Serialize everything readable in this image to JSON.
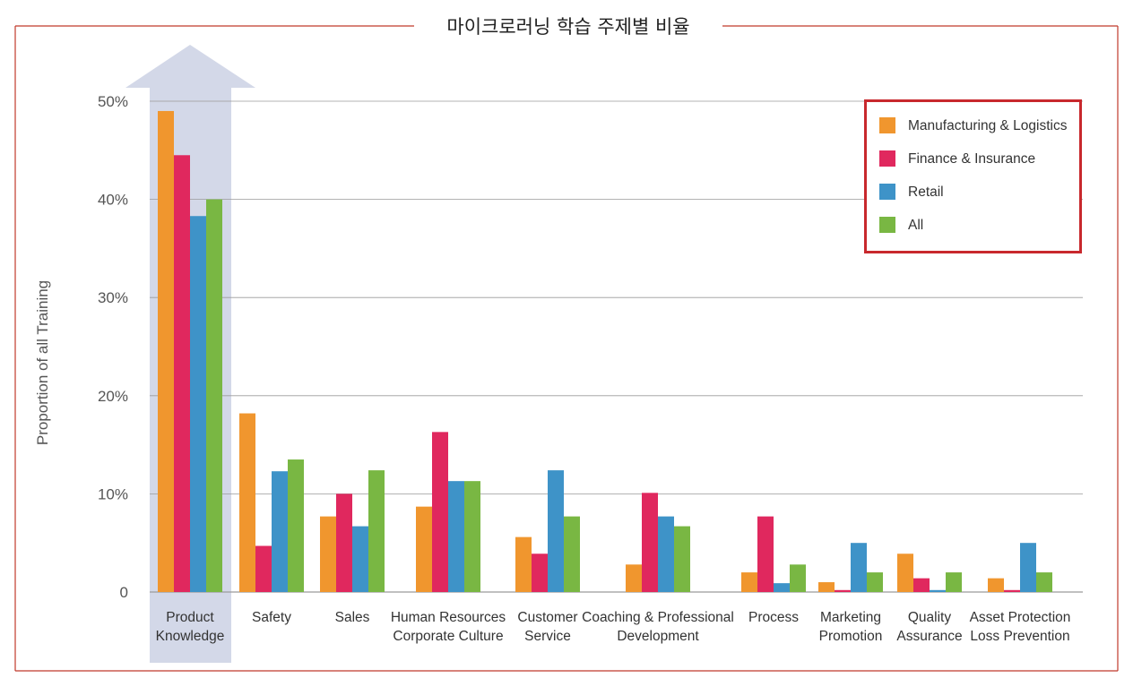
{
  "chart_data": {
    "type": "bar",
    "title": "마이크로러닝 학습 주제별 비율",
    "ylabel": "Proportion of all Training",
    "xlabel": "",
    "ylim": [
      0,
      50
    ],
    "ytick_labels": [
      "0",
      "10%",
      "20%",
      "30%",
      "40%",
      "50%"
    ],
    "ytick_values": [
      0,
      10,
      20,
      30,
      40,
      50
    ],
    "grid": true,
    "legend_position": "top-right",
    "highlighted_category": "Product Knowledge",
    "categories": [
      [
        "Product",
        "Knowledge"
      ],
      [
        "Safety"
      ],
      [
        "Sales"
      ],
      [
        "Human Resources",
        "Corporate Culture"
      ],
      [
        "Customer",
        "Service"
      ],
      [
        "Coaching & Professional",
        "Development"
      ],
      [
        "Process"
      ],
      [
        "Marketing",
        "Promotion"
      ],
      [
        "Quality",
        "Assurance"
      ],
      [
        "Asset Protection",
        "Loss Prevention"
      ]
    ],
    "series": [
      {
        "name": "Manufacturing & Logistics",
        "color": "#f0962e",
        "values": [
          49,
          18.2,
          7.7,
          8.7,
          5.6,
          2.8,
          2.0,
          1.0,
          3.9,
          1.4
        ]
      },
      {
        "name": "Finance & Insurance",
        "color": "#e0285e",
        "values": [
          44.5,
          4.7,
          10.0,
          16.3,
          3.9,
          10.1,
          7.7,
          0.2,
          1.4,
          0.2
        ]
      },
      {
        "name": "Retail",
        "color": "#3e93c8",
        "values": [
          38.3,
          12.3,
          6.7,
          11.3,
          12.4,
          7.7,
          0.9,
          5.0,
          0.2,
          5.0
        ]
      },
      {
        "name": "All",
        "color": "#79b743",
        "values": [
          40.0,
          13.5,
          12.4,
          11.3,
          7.7,
          6.7,
          2.8,
          2.0,
          2.0,
          2.0
        ]
      }
    ]
  },
  "colors": {
    "frame": "#c0392b",
    "legend_border": "#c8282d",
    "highlight": "#d3d8e8",
    "gridline": "#9a9a9a"
  }
}
